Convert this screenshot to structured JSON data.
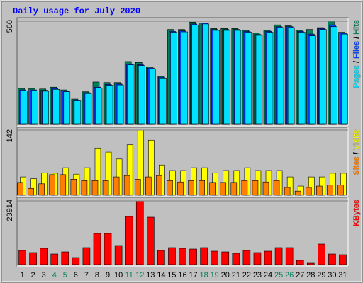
{
  "chart_data": {
    "type": "bar",
    "title": "Daily usage for July 2020",
    "categories": [
      1,
      2,
      3,
      4,
      5,
      6,
      7,
      8,
      9,
      10,
      11,
      12,
      13,
      14,
      15,
      16,
      17,
      18,
      19,
      20,
      21,
      22,
      23,
      24,
      25,
      26,
      27,
      28,
      29,
      30,
      31
    ],
    "weekend_days": [
      4,
      5,
      11,
      12,
      18,
      19,
      25,
      26
    ],
    "weekday_color": "#000000",
    "weekend_color": "#00805c",
    "legend_separator": "/",
    "panels": [
      {
        "ylim": [
          0,
          560
        ],
        "yticks": [
          560
        ],
        "series": [
          {
            "name": "Pages",
            "color": "#00e0ff",
            "values": [
              180,
              180,
              178,
              188,
              175,
              125,
              165,
              195,
              210,
              212,
              322,
              318,
              300,
              250,
              500,
              502,
              540,
              545,
              510,
              510,
              510,
              500,
              483,
              500,
              525,
              525,
              500,
              480,
              515,
              530,
              490
            ]
          },
          {
            "name": "Files",
            "color": "#0040ff",
            "values": [
              185,
              185,
              183,
              193,
              180,
              130,
              170,
              200,
              215,
              217,
              327,
              323,
              305,
              255,
              505,
              507,
              545,
              550,
              515,
              515,
              515,
              505,
              488,
              505,
              530,
              530,
              505,
              490,
              520,
              540,
              495
            ]
          },
          {
            "name": "Hits",
            "color": "#00805c",
            "values": [
              193,
              193,
              190,
              200,
              185,
              135,
              175,
              228,
              225,
              225,
              340,
              335,
              310,
              260,
              515,
              515,
              555,
              550,
              520,
              520,
              520,
              510,
              495,
              510,
              540,
              535,
              510,
              515,
              525,
              560,
              500
            ]
          }
        ]
      },
      {
        "ylim": [
          0,
          142
        ],
        "yticks": [
          142
        ],
        "series": [
          {
            "name": "Sites",
            "color": "#ff8000",
            "values": [
              28,
              15,
              25,
              45,
              45,
              35,
              32,
              32,
              32,
              40,
              43,
              35,
              40,
              43,
              32,
              29,
              32,
              32,
              28,
              28,
              28,
              32,
              32,
              29,
              32,
              17,
              9,
              17,
              20,
              22,
              22
            ]
          },
          {
            "name": "Visits",
            "color": "#ffff00",
            "values": [
              40,
              36,
              49,
              48,
              60,
              46,
              60,
              103,
              94,
              79,
              110,
              142,
              120,
              66,
              54,
              54,
              60,
              60,
              49,
              54,
              54,
              60,
              54,
              54,
              54,
              40,
              20,
              40,
              40,
              48,
              48
            ]
          }
        ]
      },
      {
        "ylim": [
          0,
          23914
        ],
        "yticks": [
          23914
        ],
        "series": [
          {
            "name": "KBytes",
            "color": "#ff0000",
            "values": [
              5314,
              4517,
              6111,
              3986,
              4783,
              2657,
              6377,
              11691,
              11691,
              7174,
              18068,
              23914,
              17802,
              5314,
              6377,
              6111,
              5845,
              6377,
              5048,
              4783,
              4251,
              5314,
              4517,
              5048,
              6377,
              6377,
              1594,
              531,
              7705,
              3986,
              3720
            ]
          }
        ]
      }
    ]
  }
}
